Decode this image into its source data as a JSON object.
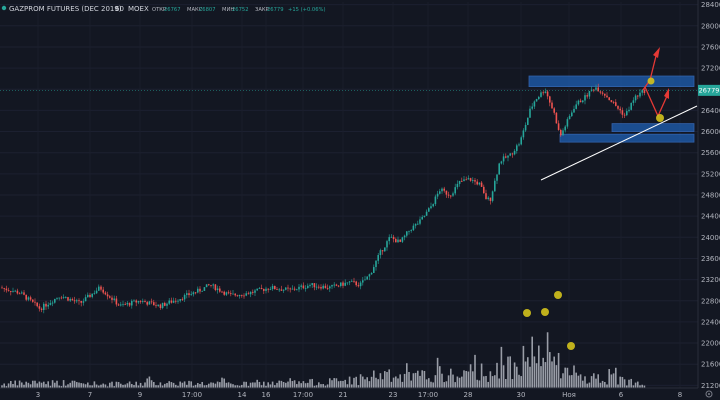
{
  "header": {
    "symbol": "GAZPROM FUTURES (DEC 2019)",
    "interval": "60",
    "exchange": "MOEX",
    "ohlc": [
      {
        "label": "ОТКР",
        "value": "26767"
      },
      {
        "label": "МАКС",
        "value": "26807"
      },
      {
        "label": "МИН",
        "value": "26752"
      },
      {
        "label": "ЗАКР",
        "value": "26779"
      }
    ],
    "change": "+15 (+0.06%)"
  },
  "price_tag": "26779",
  "colors": {
    "background": "#131722",
    "up": "#26a69a",
    "down": "#ef5350",
    "volume": "#b2b5be",
    "zone": "#1e5fb4",
    "arrow": "#e53935",
    "marker": "#d4c21c",
    "price_tag_bg": "#26a69a"
  },
  "chart_data": {
    "type": "candlestick",
    "title": "GAZPROM FUTURES (DEC 2019)",
    "y_axis": {
      "ticks": [
        21200,
        21600,
        22000,
        22400,
        22800,
        23200,
        23600,
        24000,
        24400,
        24800,
        25200,
        25600,
        26000,
        26400,
        26800,
        27200,
        27600,
        28000,
        28400
      ],
      "range": [
        21150,
        28450
      ]
    },
    "x_axis": {
      "ticks": [
        "3",
        "7",
        "9",
        "17:00",
        "14",
        "16",
        "17:00",
        "21",
        "23",
        "17:00",
        "28",
        "30",
        "Ноя",
        "6",
        "8"
      ]
    },
    "last_price": 26779,
    "price_path": [
      [
        0,
        23050
      ],
      [
        20,
        22950
      ],
      [
        40,
        22650
      ],
      [
        60,
        22900
      ],
      [
        80,
        22750
      ],
      [
        100,
        23050
      ],
      [
        120,
        22700
      ],
      [
        140,
        22800
      ],
      [
        160,
        22700
      ],
      [
        180,
        22850
      ],
      [
        200,
        23000
      ],
      [
        210,
        23100
      ],
      [
        230,
        22900
      ],
      [
        250,
        22950
      ],
      [
        270,
        23050
      ],
      [
        290,
        23000
      ],
      [
        310,
        23100
      ],
      [
        330,
        23050
      ],
      [
        350,
        23150
      ],
      [
        360,
        23100
      ],
      [
        370,
        23300
      ],
      [
        380,
        23700
      ],
      [
        390,
        24000
      ],
      [
        400,
        23900
      ],
      [
        410,
        24150
      ],
      [
        420,
        24300
      ],
      [
        430,
        24550
      ],
      [
        440,
        24900
      ],
      [
        450,
        24800
      ],
      [
        460,
        25050
      ],
      [
        470,
        25100
      ],
      [
        480,
        25000
      ],
      [
        485,
        24750
      ],
      [
        490,
        24700
      ],
      [
        500,
        25450
      ],
      [
        510,
        25550
      ],
      [
        520,
        25800
      ],
      [
        530,
        26400
      ],
      [
        535,
        26600
      ],
      [
        545,
        26800
      ],
      [
        555,
        26300
      ],
      [
        560,
        25900
      ],
      [
        565,
        26100
      ],
      [
        575,
        26500
      ],
      [
        585,
        26650
      ],
      [
        595,
        26850
      ],
      [
        605,
        26700
      ],
      [
        615,
        26500
      ],
      [
        625,
        26300
      ],
      [
        635,
        26650
      ],
      [
        645,
        26779
      ]
    ],
    "volume_profile": [
      [
        0,
        0.1
      ],
      [
        40,
        0.15
      ],
      [
        80,
        0.12
      ],
      [
        120,
        0.1
      ],
      [
        160,
        0.14
      ],
      [
        200,
        0.12
      ],
      [
        240,
        0.1
      ],
      [
        280,
        0.13
      ],
      [
        320,
        0.15
      ],
      [
        360,
        0.2
      ],
      [
        380,
        0.35
      ],
      [
        400,
        0.25
      ],
      [
        420,
        0.3
      ],
      [
        440,
        0.35
      ],
      [
        460,
        0.3
      ],
      [
        480,
        0.45
      ],
      [
        500,
        0.4
      ],
      [
        520,
        0.8
      ],
      [
        530,
        0.9
      ],
      [
        540,
        0.7
      ],
      [
        550,
        0.95
      ],
      [
        560,
        0.5
      ],
      [
        570,
        0.35
      ],
      [
        580,
        0.3
      ],
      [
        600,
        0.25
      ],
      [
        620,
        0.2
      ],
      [
        640,
        0.15
      ]
    ],
    "annotations": {
      "zones": [
        {
          "type": "resistance",
          "from": 26850,
          "to": 27050
        },
        {
          "type": "support",
          "from": 26000,
          "to": 26150
        },
        {
          "type": "support",
          "from": 25800,
          "to": 25950
        }
      ],
      "trendline": "rising support",
      "arrows": 2,
      "markers": 6
    }
  }
}
